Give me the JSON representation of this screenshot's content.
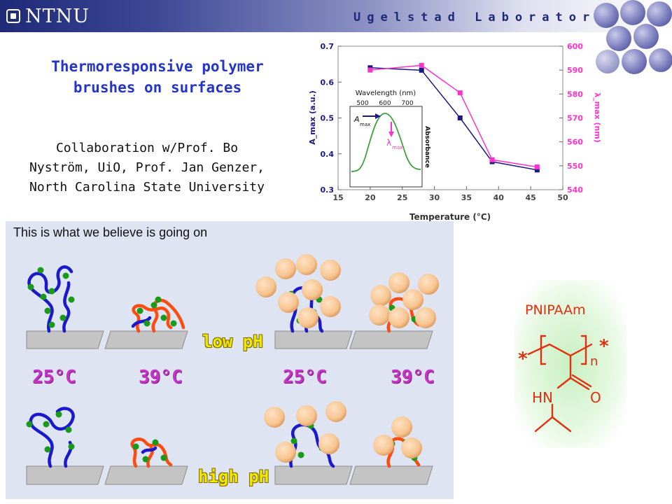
{
  "header": {
    "logo_text": "NTNU",
    "lab_name": "Ugelstad Laboratory"
  },
  "title": {
    "line1": "Thermoresponsive polymer",
    "line2": "brushes on surfaces"
  },
  "collaboration": {
    "line1": "Collaboration w/Prof. Bo",
    "line2": "Nyström, UiO, Prof. Jan Genzer,",
    "line3": "North Carolina State University"
  },
  "chart_data": {
    "type": "line",
    "xlabel": "Temperature (°C)",
    "ylabel_left": "A_max (a.u.)",
    "ylabel_right": "λ_max (nm)",
    "xlim": [
      15,
      50
    ],
    "ylim_left": [
      0.3,
      0.7
    ],
    "ylim_right": [
      540,
      600
    ],
    "x_ticks": [
      "15",
      "20",
      "25",
      "30",
      "35",
      "40",
      "45",
      "50"
    ],
    "y_left_ticks": [
      "0.3",
      "0.4",
      "0.5",
      "0.6",
      "0.7"
    ],
    "y_right_ticks": [
      "540",
      "550",
      "560",
      "570",
      "580",
      "590",
      "600"
    ],
    "series": [
      {
        "name": "A_max",
        "axis": "left",
        "color": "#1a1a80",
        "x": [
          20,
          28,
          34,
          39,
          46
        ],
        "y": [
          0.64,
          0.633,
          0.5,
          0.378,
          0.355
        ]
      },
      {
        "name": "λ_max",
        "axis": "right",
        "color": "#ff33cc",
        "x": [
          20,
          28,
          34,
          39,
          46
        ],
        "y": [
          590,
          592,
          580.5,
          552.5,
          549.5
        ]
      }
    ],
    "inset": {
      "top_label": "Wavelength (nm)",
      "ticks": [
        "500",
        "600",
        "700"
      ],
      "side_label": "Absorbance",
      "annotation_a": "A",
      "annotation_a_sub": "max",
      "annotation_lambda": "λ",
      "annotation_lambda_sub": "max"
    }
  },
  "scheme": {
    "caption": "This is what we believe is going on",
    "temps": [
      "25°C",
      "39°C",
      "25°C",
      "39°C"
    ],
    "low_ph": "low pH",
    "high_ph": "high pH"
  },
  "structure": {
    "name": "PNIPAAm",
    "star": "*",
    "n": "n",
    "hn": "HN",
    "o": "O"
  },
  "colors": {
    "header_blue": "#1e2a78",
    "title_blue": "#2436c8",
    "condition_magenta": "#c733c7",
    "ph_yellow": "#f2e600",
    "chain_blue": "#1a1acc",
    "chain_red": "#ff4a10",
    "site_green": "#1a9a1a",
    "particle": "#f7c48f",
    "chem_red": "#e03010"
  }
}
